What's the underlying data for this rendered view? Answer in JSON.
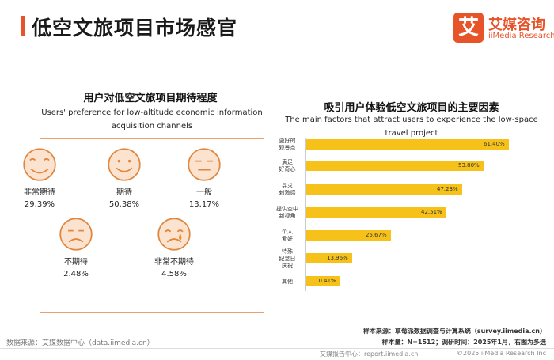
{
  "page_title": "低空文旅项目市场感官",
  "logo": {
    "mark": "艾",
    "name_cn": "艾媒咨询",
    "name_en": "iiMedia Research"
  },
  "chart_data": [
    {
      "type": "pictograph",
      "title": "用户对低空文旅项目期待程度",
      "subtitle": "Users' preference for low-altitude economic information acquisition channels",
      "categories": [
        "非常期待",
        "期待",
        "一般",
        "不期待",
        "非常不期待"
      ],
      "values": [
        29.39,
        50.38,
        13.17,
        2.48,
        4.58
      ],
      "value_labels": [
        "29.39%",
        "50.38%",
        "13.17%",
        "2.48%",
        "4.58%"
      ],
      "faces": [
        "very-happy",
        "happy",
        "neutral",
        "sad",
        "crying"
      ]
    },
    {
      "type": "bar",
      "orientation": "horizontal",
      "title": "吸引用户体验低空文旅项目的主要因素",
      "subtitle": "The main factors that attract users to experience the low-space travel project",
      "categories": [
        [
          "更好的",
          "观景点"
        ],
        [
          "满足",
          "好奇心"
        ],
        [
          "寻求",
          "刺激感"
        ],
        [
          "提供空中",
          "新视角"
        ],
        [
          "个人",
          "爱好"
        ],
        [
          "特殊",
          "纪念日",
          "庆祝"
        ],
        [
          "其他"
        ]
      ],
      "values": [
        61.4,
        53.8,
        47.23,
        42.51,
        25.67,
        13.96,
        10.41
      ],
      "value_labels": [
        "61.40%",
        "53.80%",
        "47.23%",
        "42.51%",
        "25.67%",
        "13.96%",
        "10.41%"
      ],
      "xlim": [
        0,
        70
      ],
      "bar_color": "#f6c21a"
    }
  ],
  "footer": {
    "sample_source": "样本来源：草莓派数据调查与计算系统（survey.iimedia.cn）",
    "sample_size": "样本量：N=1512；调研时间：2025年1月，右图为多选",
    "data_source": "数据来源：艾媒数据中心（data.iimedia.cn）",
    "report": "艾媒报告中心：report.iimedia.cn",
    "copyright": "©2025  iiMedia Research Inc"
  },
  "colors": {
    "accent": "#e8542a",
    "face_fill": "#fbe3cf",
    "face_stroke": "#e0873f",
    "bar": "#f6c21a",
    "box_border": "#e9a06a"
  }
}
